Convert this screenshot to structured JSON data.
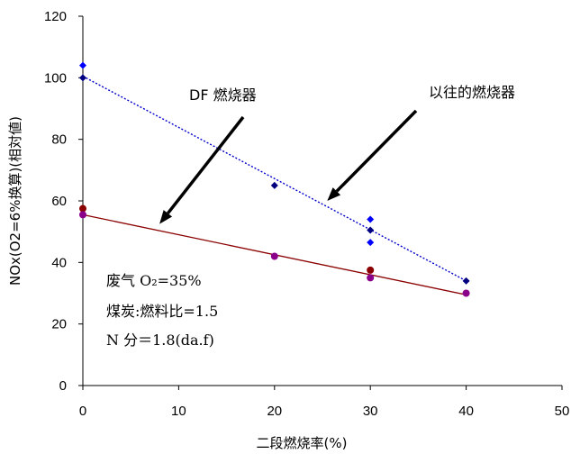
{
  "chart_data": {
    "type": "scatter",
    "xlabel": "二段燃烧率(%)",
    "ylabel": "NOx(O2=6%换算)(相対値)",
    "xlim": [
      0,
      50
    ],
    "ylim": [
      0,
      120
    ],
    "x_ticks": [
      "0",
      "10",
      "20",
      "30",
      "40",
      "50"
    ],
    "y_ticks": [
      "0",
      "20",
      "40",
      "60",
      "80",
      "100",
      "120"
    ],
    "grid": false,
    "series": [
      {
        "name": "以往的燃烧器",
        "color": "#000080",
        "marker": "diamond",
        "points": [
          [
            0,
            100
          ],
          [
            20,
            65
          ],
          [
            30,
            50.5
          ],
          [
            40,
            34
          ]
        ]
      },
      {
        "name": "",
        "color": "#0000ff",
        "marker": "diamond",
        "points": [
          [
            0,
            104
          ],
          [
            30,
            54
          ],
          [
            30,
            46.5
          ]
        ]
      },
      {
        "name": "DF 燃烧器",
        "color": "#8b0000",
        "marker": "circle",
        "points": [
          [
            0,
            57.5
          ],
          [
            30,
            37.5
          ]
        ]
      },
      {
        "name": "",
        "color": "#8b008b",
        "marker": "circle",
        "points": [
          [
            0,
            55.5
          ],
          [
            20,
            42
          ],
          [
            30,
            35
          ],
          [
            40,
            30
          ]
        ]
      }
    ],
    "trendlines": [
      {
        "series": "以往的燃烧器",
        "style": "dotted",
        "color": "#0000cc",
        "from": [
          0,
          100.5
        ],
        "to": [
          40,
          34
        ]
      },
      {
        "series": "DF 燃烧器",
        "style": "solid",
        "color": "#8b0000",
        "from": [
          0,
          55.5
        ],
        "to": [
          40,
          29.5
        ]
      }
    ],
    "annotations": {
      "conditions": [
        "废气 O₂=35%",
        "煤炭:燃料比=1.5",
        "N 分＝1.8(da.f)"
      ],
      "callout_df": {
        "label": "DF 燃烧器",
        "arrow_to": [
          8,
          52.5
        ]
      },
      "callout_old": {
        "label": "以往的燃烧器",
        "arrow_to": [
          25.5,
          60
        ]
      }
    }
  }
}
